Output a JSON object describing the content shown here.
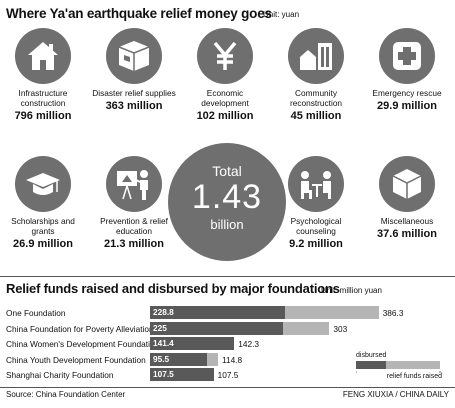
{
  "header": {
    "title": "Where Ya'an earthquake relief money goes",
    "unit": "Unit: yuan"
  },
  "categories": [
    {
      "label": "Infrastructure construction",
      "amount": "796 million",
      "icon": "house-icon"
    },
    {
      "label": "Disaster relief supplies",
      "amount": "363 million",
      "icon": "supply-box-icon"
    },
    {
      "label": "Economic development",
      "amount": "102 million",
      "icon": "yuan-icon"
    },
    {
      "label": "Community reconstruction",
      "amount": "45 million",
      "icon": "community-buildings-icon"
    },
    {
      "label": "Emergency rescue",
      "amount": "29.9 million",
      "icon": "medical-cross-icon"
    },
    {
      "label": "Scholarships and grants",
      "amount": "26.9 million",
      "icon": "graduation-cap-icon"
    },
    {
      "label": "Prevention & relief education",
      "amount": "21.3 million",
      "icon": "teacher-board-icon"
    },
    {
      "label": "Psychological counseling",
      "amount": "9.2 million",
      "icon": "counseling-icon"
    },
    {
      "label": "Miscellaneous",
      "amount": "37.6 million",
      "icon": "cube-icon"
    }
  ],
  "total": {
    "label": "Total",
    "value": "1.43",
    "unit": "billion"
  },
  "section2": {
    "title": "Relief funds raised and disbursed by major foundations",
    "unit": "Unit: million yuan"
  },
  "chart_data": {
    "type": "bar",
    "title": "Relief funds raised and disbursed by major foundations",
    "unit": "million yuan",
    "categories": [
      "One Foundation",
      "China Foundation for Poverty Alleviation",
      "China Women's Development Foundation",
      "China Youth Development Foundation",
      "Shanghai Charity Foundation"
    ],
    "series": [
      {
        "name": "disbursed",
        "values": [
          228.8,
          225,
          141.4,
          95.5,
          107.5
        ],
        "labels": [
          "228.8",
          "225",
          "141.4",
          "95.5",
          "107.5"
        ]
      },
      {
        "name": "relief funds raised",
        "values": [
          386.3,
          303,
          142.3,
          114.8,
          107.5
        ],
        "labels": [
          "386.3",
          "303",
          "142.3",
          "114.8",
          "107.5"
        ]
      }
    ],
    "xlim": [
      0,
      400
    ],
    "colors": {
      "disbursed": "#595959",
      "raised": "#b5b5b5"
    },
    "legend_position": "bottom-right"
  },
  "legend": {
    "disbursed": "disbursed",
    "raised": "relief funds raised"
  },
  "footer": {
    "source": "Source: China Foundation Center",
    "credit": "FENG XIUXIA / CHINA DAILY"
  }
}
